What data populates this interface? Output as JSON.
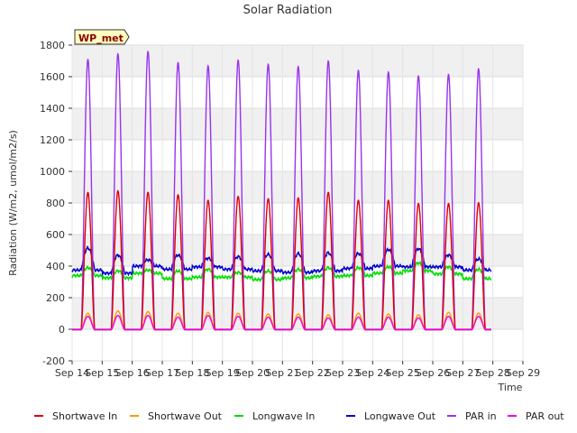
{
  "chart_data": {
    "type": "line",
    "title": "Solar Radiation",
    "xlabel": "Time",
    "ylabel": "Radiation (W/m2, umol/m2/s)",
    "badge": "WP_met",
    "xlim": [
      14,
      29
    ],
    "ylim": [
      -200,
      1800
    ],
    "x_tick_labels": [
      "Sep 14",
      "Sep 15",
      "Sep 16",
      "Sep 17",
      "Sep 18",
      "Sep 19",
      "Sep 20",
      "Sep 21",
      "Sep 22",
      "Sep 23",
      "Sep 24",
      "Sep 25",
      "Sep 26",
      "Sep 27",
      "Sep 28",
      "Sep 29"
    ],
    "y_ticks": [
      -200,
      0,
      200,
      400,
      600,
      800,
      1000,
      1200,
      1400,
      1600,
      1800
    ],
    "grid": true,
    "legend_position": "bottom",
    "days": [
      14,
      15,
      16,
      17,
      18,
      19,
      20,
      21,
      22,
      23,
      24,
      25,
      26,
      27
    ],
    "series": [
      {
        "name": "Shortwave In",
        "color": "#dd0000",
        "peaks": [
          870,
          880,
          870,
          855,
          820,
          845,
          830,
          835,
          870,
          820,
          820,
          800,
          800,
          805
        ]
      },
      {
        "name": "Shortwave Out",
        "color": "#ff9900",
        "peaks": [
          105,
          120,
          115,
          105,
          110,
          105,
          100,
          100,
          95,
          105,
          100,
          95,
          110,
          105
        ]
      },
      {
        "name": "Longwave In",
        "color": "#00dd00",
        "night": [
          340,
          325,
          355,
          320,
          330,
          330,
          315,
          325,
          335,
          340,
          355,
          370,
          350,
          320
        ],
        "day": [
          390,
          370,
          375,
          370,
          380,
          360,
          370,
          380,
          390,
          390,
          395,
          420,
          395,
          380
        ]
      },
      {
        "name": "Longwave Out",
        "color": "#0000cc",
        "night": [
          375,
          355,
          400,
          380,
          395,
          380,
          370,
          360,
          370,
          385,
          400,
          395,
          395,
          375
        ],
        "day": [
          515,
          470,
          440,
          470,
          450,
          460,
          475,
          480,
          485,
          480,
          505,
          510,
          470,
          445
        ]
      },
      {
        "name": "PAR in",
        "color": "#9933ee",
        "peaks": [
          1710,
          1745,
          1760,
          1690,
          1670,
          1705,
          1680,
          1665,
          1700,
          1640,
          1630,
          1605,
          1615,
          1650
        ]
      },
      {
        "name": "PAR out",
        "color": "#ee00ee",
        "peaks": [
          85,
          90,
          90,
          80,
          90,
          85,
          80,
          80,
          75,
          80,
          80,
          75,
          85,
          85
        ]
      }
    ]
  }
}
